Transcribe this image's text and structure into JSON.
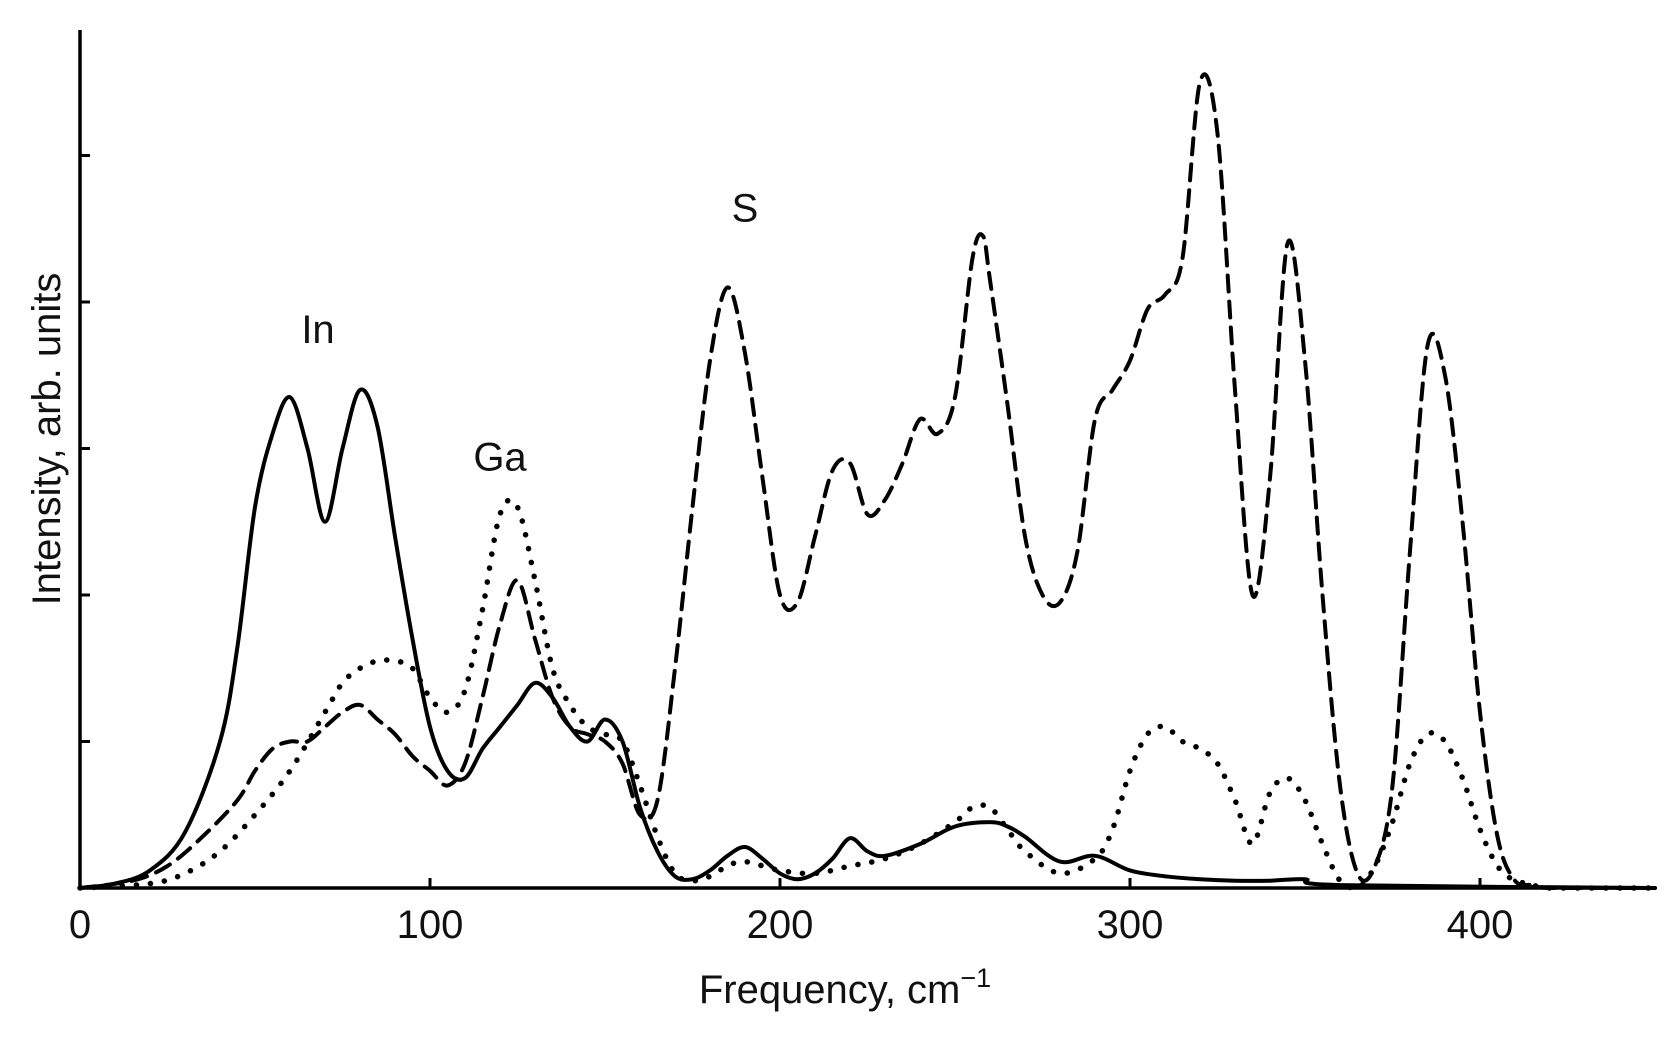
{
  "chart_data": {
    "type": "line",
    "xlabel": "Frequency, cm",
    "xlabel_sup": "−1",
    "ylabel": "Intensity, arb. units",
    "xlim": [
      0,
      450
    ],
    "ylim": [
      0,
      6
    ],
    "x_ticks": [
      0,
      100,
      200,
      300,
      400
    ],
    "x_tick_labels": [
      "0",
      "100",
      "200",
      "300",
      "400"
    ],
    "y_ticks": [
      1,
      2,
      3,
      4,
      5
    ],
    "y_tick_labels_shown": false,
    "grid": false,
    "legend": "none",
    "annotations": [
      {
        "text": "In",
        "x": 68,
        "y": 3.72
      },
      {
        "text": "Ga",
        "x": 120,
        "y": 2.85
      },
      {
        "text": "S",
        "x": 190,
        "y": 4.55
      }
    ],
    "series": [
      {
        "style": "solid",
        "x": [
          0,
          10,
          20,
          30,
          40,
          45,
          50,
          55,
          60,
          65,
          70,
          75,
          80,
          85,
          90,
          95,
          100,
          105,
          110,
          115,
          120,
          125,
          130,
          135,
          140,
          145,
          150,
          155,
          160,
          165,
          170,
          175,
          180,
          185,
          190,
          195,
          200,
          205,
          210,
          215,
          220,
          225,
          230,
          240,
          250,
          260,
          265,
          270,
          280,
          290,
          300,
          310,
          320,
          330,
          340,
          350,
          360,
          450
        ],
        "y": [
          0,
          0.03,
          0.12,
          0.38,
          1.0,
          1.65,
          2.6,
          3.1,
          3.35,
          3.0,
          2.5,
          3.0,
          3.4,
          3.15,
          2.4,
          1.7,
          1.1,
          0.8,
          0.75,
          0.95,
          1.1,
          1.25,
          1.4,
          1.3,
          1.1,
          1.0,
          1.15,
          1.0,
          0.55,
          0.25,
          0.08,
          0.06,
          0.12,
          0.22,
          0.28,
          0.2,
          0.1,
          0.06,
          0.1,
          0.2,
          0.34,
          0.25,
          0.22,
          0.3,
          0.42,
          0.45,
          0.42,
          0.35,
          0.18,
          0.22,
          0.12,
          0.08,
          0.06,
          0.05,
          0.05,
          0.06,
          0.02,
          0.0
        ]
      },
      {
        "style": "dashed",
        "x": [
          0,
          15,
          25,
          35,
          45,
          50,
          55,
          60,
          65,
          70,
          75,
          80,
          85,
          90,
          95,
          100,
          105,
          110,
          115,
          120,
          125,
          130,
          135,
          140,
          145,
          150,
          155,
          160,
          165,
          170,
          175,
          180,
          185,
          190,
          195,
          200,
          205,
          210,
          215,
          220,
          225,
          230,
          235,
          240,
          245,
          250,
          255,
          258,
          260,
          265,
          270,
          275,
          280,
          285,
          290,
          295,
          300,
          305,
          310,
          315,
          320,
          325,
          330,
          335,
          340,
          345,
          350,
          355,
          360,
          365,
          370,
          375,
          380,
          385,
          390,
          395,
          400,
          405,
          410,
          415,
          420,
          450
        ],
        "y": [
          0,
          0.05,
          0.15,
          0.35,
          0.6,
          0.8,
          0.95,
          1.0,
          1.0,
          1.1,
          1.2,
          1.25,
          1.15,
          1.05,
          0.9,
          0.8,
          0.7,
          0.85,
          1.3,
          1.8,
          2.1,
          1.7,
          1.3,
          1.1,
          1.05,
          1.0,
          0.85,
          0.5,
          0.6,
          1.5,
          2.6,
          3.6,
          4.1,
          3.65,
          2.8,
          2.0,
          1.95,
          2.4,
          2.85,
          2.9,
          2.55,
          2.65,
          2.9,
          3.2,
          3.1,
          3.35,
          4.3,
          4.45,
          4.15,
          3.3,
          2.4,
          2.0,
          1.95,
          2.3,
          3.2,
          3.4,
          3.6,
          3.95,
          4.05,
          4.3,
          5.5,
          5.15,
          3.4,
          2.0,
          2.8,
          4.4,
          3.6,
          2.0,
          0.7,
          0.1,
          0.15,
          0.7,
          2.3,
          3.7,
          3.5,
          2.5,
          1.2,
          0.35,
          0.05,
          0.02,
          0.0,
          0.0
        ]
      },
      {
        "style": "dotted",
        "x": [
          0,
          20,
          30,
          40,
          50,
          60,
          70,
          75,
          80,
          85,
          90,
          95,
          100,
          105,
          110,
          115,
          120,
          125,
          130,
          135,
          140,
          145,
          150,
          155,
          160,
          165,
          170,
          175,
          180,
          185,
          190,
          200,
          210,
          220,
          230,
          240,
          250,
          255,
          260,
          265,
          270,
          280,
          290,
          295,
          300,
          305,
          310,
          315,
          320,
          325,
          330,
          335,
          340,
          345,
          350,
          355,
          360,
          365,
          370,
          375,
          380,
          385,
          390,
          395,
          400,
          405,
          410,
          415,
          420,
          450
        ],
        "y": [
          0,
          0.03,
          0.1,
          0.25,
          0.5,
          0.8,
          1.2,
          1.4,
          1.5,
          1.55,
          1.55,
          1.5,
          1.3,
          1.2,
          1.35,
          1.9,
          2.55,
          2.6,
          2.1,
          1.5,
          1.25,
          1.1,
          1.05,
          1.0,
          0.7,
          0.35,
          0.1,
          0.05,
          0.08,
          0.15,
          0.18,
          0.12,
          0.1,
          0.15,
          0.2,
          0.3,
          0.45,
          0.55,
          0.55,
          0.4,
          0.25,
          0.1,
          0.2,
          0.4,
          0.8,
          1.05,
          1.1,
          1.0,
          0.95,
          0.85,
          0.6,
          0.3,
          0.65,
          0.75,
          0.6,
          0.3,
          0.05,
          0.0,
          0.15,
          0.45,
          0.85,
          1.05,
          1.0,
          0.75,
          0.4,
          0.15,
          0.05,
          0.03,
          0.0,
          0.0
        ]
      }
    ]
  }
}
